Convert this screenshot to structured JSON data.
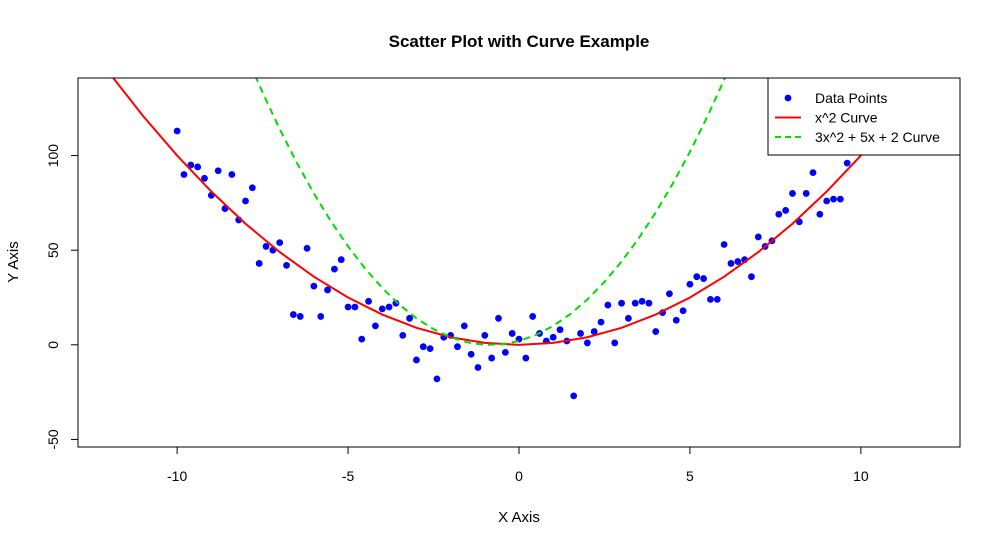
{
  "chart_data": {
    "type": "scatter",
    "title": "Scatter Plot with Curve Example",
    "xlabel": "X Axis",
    "ylabel": "Y Axis",
    "xlim": [
      -12.9,
      12.9
    ],
    "ylim": [
      -54,
      141
    ],
    "xticks": [
      -10,
      -5,
      0,
      5,
      10
    ],
    "yticks": [
      -50,
      0,
      50,
      100
    ],
    "grid": false,
    "legend_position": "top-right",
    "colors": {
      "points": "#0000ff",
      "curve1": "#ff0000",
      "curve2": "#00dd00"
    },
    "legend": [
      {
        "label": "Data Points",
        "kind": "point",
        "color": "#0000ff"
      },
      {
        "label": "x^2 Curve",
        "kind": "line",
        "color": "#ff0000"
      },
      {
        "label": "3x^2 + 5x + 2 Curve",
        "kind": "dashed",
        "color": "#00dd00"
      }
    ],
    "series": [
      {
        "name": "Data Points",
        "kind": "points",
        "x": [
          -10.0,
          -9.8,
          -9.6,
          -9.4,
          -9.2,
          -9.0,
          -8.8,
          -8.6,
          -8.4,
          -8.2,
          -8.0,
          -7.8,
          -7.6,
          -7.4,
          -7.2,
          -7.0,
          -6.8,
          -6.6,
          -6.4,
          -6.2,
          -6.0,
          -5.8,
          -5.6,
          -5.4,
          -5.2,
          -5.0,
          -4.8,
          -4.6,
          -4.4,
          -4.2,
          -4.0,
          -3.8,
          -3.6,
          -3.4,
          -3.2,
          -3.0,
          -2.8,
          -2.6,
          -2.4,
          -2.2,
          -2.0,
          -1.8,
          -1.6,
          -1.4,
          -1.2,
          -1.0,
          -0.8,
          -0.6,
          -0.4,
          -0.2,
          0.0,
          0.2,
          0.4,
          0.6,
          0.8,
          1.0,
          1.2,
          1.4,
          1.6,
          1.8,
          2.0,
          2.2,
          2.4,
          2.6,
          2.8,
          3.0,
          3.2,
          3.4,
          3.6,
          3.8,
          4.0,
          4.2,
          4.4,
          4.6,
          4.8,
          5.0,
          5.2,
          5.4,
          5.6,
          5.8,
          6.0,
          6.2,
          6.4,
          6.6,
          6.8,
          7.0,
          7.2,
          7.4,
          7.6,
          7.8,
          8.0,
          8.2,
          8.4,
          8.6,
          8.8,
          9.0,
          9.2,
          9.4,
          9.6,
          9.8
        ],
        "y": [
          113,
          90,
          95,
          94,
          88,
          79,
          92,
          72,
          90,
          66,
          76,
          83,
          43,
          52,
          50,
          54,
          42,
          16,
          15,
          51,
          31,
          15,
          29,
          40,
          45,
          20,
          20,
          3,
          23,
          10,
          19,
          20,
          22,
          5,
          14,
          -8,
          -1,
          -2,
          -18,
          4,
          5,
          -1,
          10,
          -5,
          -12,
          5,
          -7,
          14,
          -4,
          6,
          3,
          -7,
          15,
          6,
          2,
          4,
          8,
          2,
          -27,
          6,
          1,
          7,
          12,
          21,
          1,
          22,
          14,
          22,
          23,
          22,
          7,
          17,
          27,
          13,
          18,
          32,
          36,
          35,
          24,
          24,
          53,
          43,
          44,
          45,
          36,
          57,
          52,
          55,
          69,
          71,
          80,
          65,
          80,
          91,
          69,
          76,
          77,
          77,
          96,
          102
        ]
      },
      {
        "name": "x^2 Curve",
        "kind": "line",
        "x": [
          -13,
          -12,
          -11,
          -10,
          -9,
          -8,
          -7,
          -6,
          -5,
          -4,
          -3,
          -2,
          -1,
          0,
          1,
          2,
          3,
          4,
          5,
          6,
          7,
          8,
          9,
          10,
          11,
          12,
          13
        ],
        "y": [
          169,
          144,
          121,
          100,
          81,
          64,
          49,
          36,
          25,
          16,
          9,
          4,
          1,
          0,
          1,
          4,
          9,
          16,
          25,
          36,
          49,
          64,
          81,
          100,
          121,
          144,
          169
        ]
      },
      {
        "name": "3x^2 + 5x + 2 Curve",
        "kind": "dashed",
        "x": [
          -8,
          -7.5,
          -7,
          -6.5,
          -6,
          -5.5,
          -5,
          -4.5,
          -4,
          -3.5,
          -3,
          -2.5,
          -2,
          -1.5,
          -1,
          -0.5,
          0,
          0.5,
          1,
          1.5,
          2,
          2.5,
          3,
          3.5,
          4,
          4.5,
          5,
          5.5,
          6,
          6.5
        ],
        "y": [
          154,
          133.25,
          114,
          96.25,
          80,
          65.25,
          52,
          40.25,
          30,
          21.25,
          14,
          8.25,
          4,
          1.25,
          0,
          0.25,
          2,
          5.25,
          10,
          16.25,
          24,
          33.25,
          44,
          56.25,
          70,
          85.25,
          102,
          120.25,
          140,
          161.25
        ]
      }
    ]
  }
}
